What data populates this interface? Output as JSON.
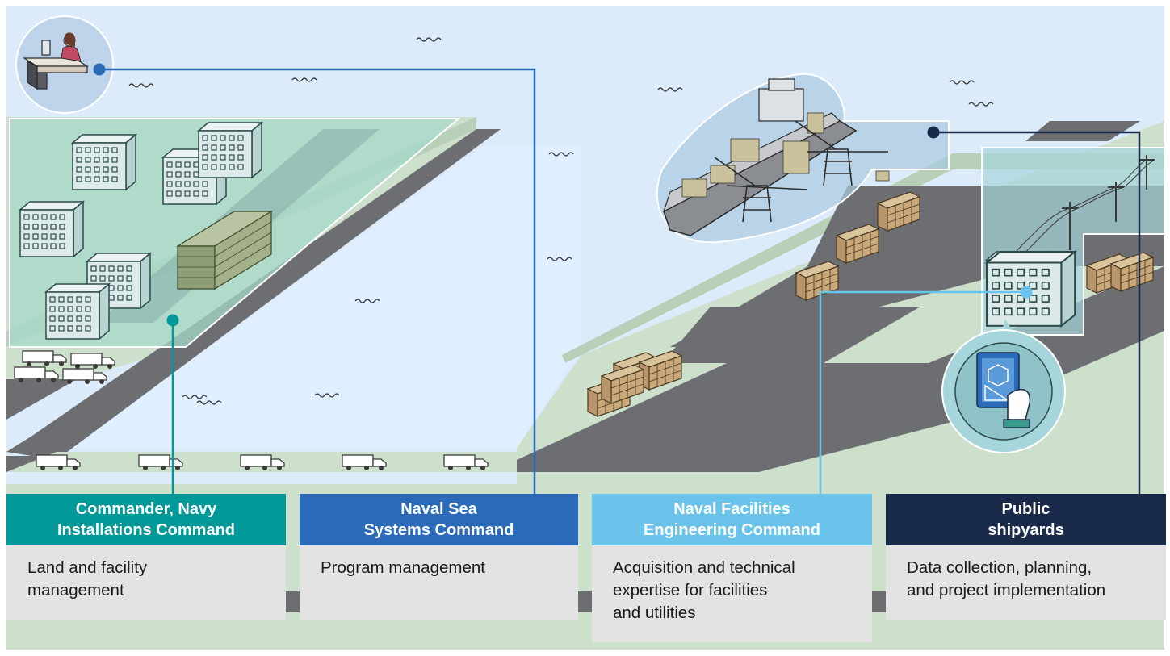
{
  "diagram": {
    "colors": {
      "sky": "#dcebfa",
      "water": "#e0efff",
      "land": "#cde0cc",
      "road": "#6d6e71",
      "cnic": "#00999a",
      "navsea": "#2a6ab8",
      "navfac": "#6ac3ea",
      "shipyards": "#1a2a4a",
      "body_bg": "#e3e3e3"
    },
    "icons": [
      "office-worker-icon",
      "tablet-blueprint-icon",
      "container-ship-icon",
      "truck-icon",
      "building-icon",
      "container-stack-icon",
      "power-line-icon"
    ]
  },
  "cards": [
    {
      "id": "cnic",
      "color": "#00999a",
      "title_line1": "Commander, Navy",
      "title_line2": "Installations Command",
      "body_line1": "Land and facility",
      "body_line2": "management",
      "body_line3": ""
    },
    {
      "id": "navsea",
      "color": "#2a6ab8",
      "title_line1": "Naval Sea",
      "title_line2": "Systems Command",
      "body_line1": "Program management",
      "body_line2": "",
      "body_line3": ""
    },
    {
      "id": "navfac",
      "color": "#6ac3ea",
      "title_line1": "Naval Facilities",
      "title_line2": "Engineering Command",
      "body_line1": "Acquisition and technical",
      "body_line2": "expertise for facilities",
      "body_line3": "and utilities"
    },
    {
      "id": "shipyards",
      "color": "#1a2a4a",
      "title_line1": "Public",
      "title_line2": "shipyards",
      "body_line1": "Data collection, planning,",
      "body_line2": "and project implementation",
      "body_line3": ""
    }
  ]
}
